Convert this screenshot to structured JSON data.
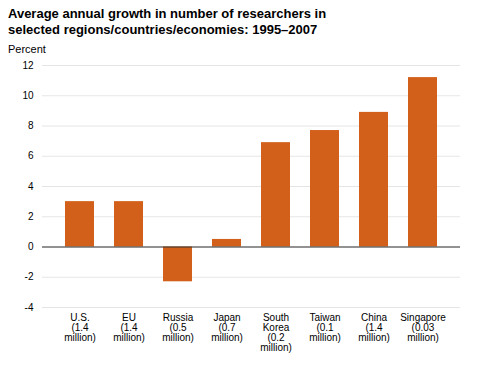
{
  "chart_data": {
    "type": "bar",
    "title": "Average annual growth in number of researchers in\nselected regions/countries/economies: 1995–2007",
    "ylabel": "Percent",
    "categories": [
      "U.S.\n(1.4\nmillion)",
      "EU\n(1.4\nmillion)",
      "Russia\n(0.5\nmillion)",
      "Japan\n(0.7\nmillion)",
      "South\nKorea\n(0.2\nmillion)",
      "Taiwan\n(0.1\nmillion)",
      "China\n(1.4\nmillion)",
      "Singapore\n(0.03\nmillion)"
    ],
    "values": [
      3.0,
      3.0,
      -2.3,
      0.5,
      6.9,
      7.7,
      8.9,
      11.2
    ],
    "color": "#D2601A",
    "ylim": [
      -4,
      12
    ],
    "yticks": [
      -4,
      -2,
      0,
      2,
      4,
      6,
      8,
      10,
      12
    ],
    "grid": true
  }
}
